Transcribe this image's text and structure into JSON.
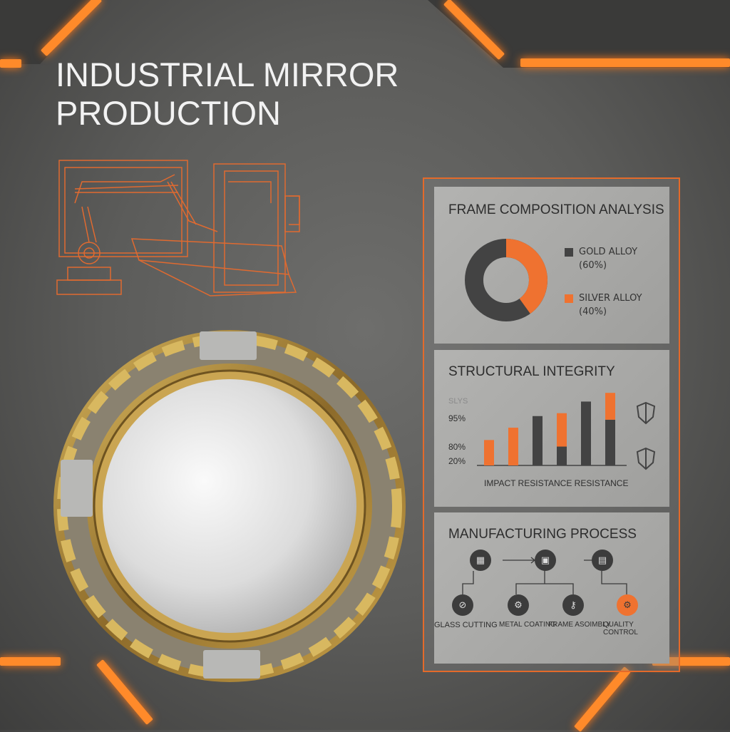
{
  "title": {
    "line1": "INDUSTRIAL MIRROR",
    "line2": "PRODUCTION"
  },
  "colors": {
    "accent": "#ef7230",
    "dark": "#434343",
    "gold": "#b08a3a"
  },
  "composition": {
    "heading": "FRAME COMPOSITION ANALYSIS",
    "legend": [
      {
        "name": "GOLD ALLOY",
        "pct": "(60%)",
        "value": 60,
        "color": "#434343"
      },
      {
        "name": "SILVER ALLOY",
        "pct": "(40%)",
        "value": 40,
        "color": "#ef7230"
      }
    ]
  },
  "integrity": {
    "heading": "STRUCTURAL INTEGRITY",
    "axis_top": "SLYS",
    "ticks": [
      "95%",
      "80%",
      "20%"
    ],
    "xlabel": "IMPACT RESISTANCE RESISTANCE",
    "bars": [
      {
        "dark": 0,
        "orange": 35
      },
      {
        "dark": 0,
        "orange": 52
      },
      {
        "dark": 68,
        "orange": 0
      },
      {
        "dark": 26,
        "orange": 46
      },
      {
        "dark": 88,
        "orange": 0
      },
      {
        "dark": 63,
        "orange": 37
      }
    ],
    "ymax": 110
  },
  "process": {
    "heading": "MANUFACTURING PROCESS",
    "steps": [
      "GLASS CUTTING",
      "METAL COATING",
      "FRAME ASOIMBLY.",
      "QUALITY CONTROL"
    ]
  }
}
